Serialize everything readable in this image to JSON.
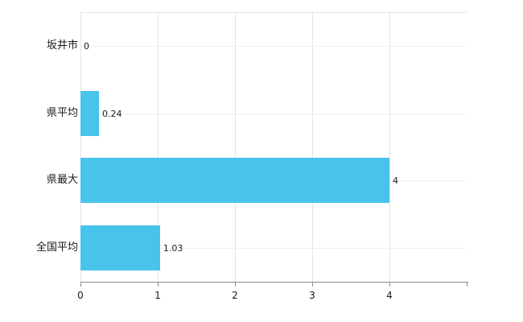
{
  "chart_data": {
    "type": "bar",
    "orientation": "horizontal",
    "title": "",
    "xlabel": "",
    "ylabel": "",
    "categories": [
      "坂井市",
      "県平均",
      "県最大",
      "全国平均"
    ],
    "values": [
      0,
      0.24,
      4,
      1.03
    ],
    "value_labels": [
      "0",
      "0.24",
      "4",
      "1.03"
    ],
    "x_ticks": [
      0,
      1,
      2,
      3,
      4
    ],
    "xlim": [
      0,
      5
    ],
    "grid": true,
    "legend": "none",
    "bar_color": "#47c3ec",
    "grid_color": "#e4e4e4",
    "axis_color": "#8a8a8a",
    "text_color": "#1a1a1a",
    "background_color": "#ffffff"
  }
}
